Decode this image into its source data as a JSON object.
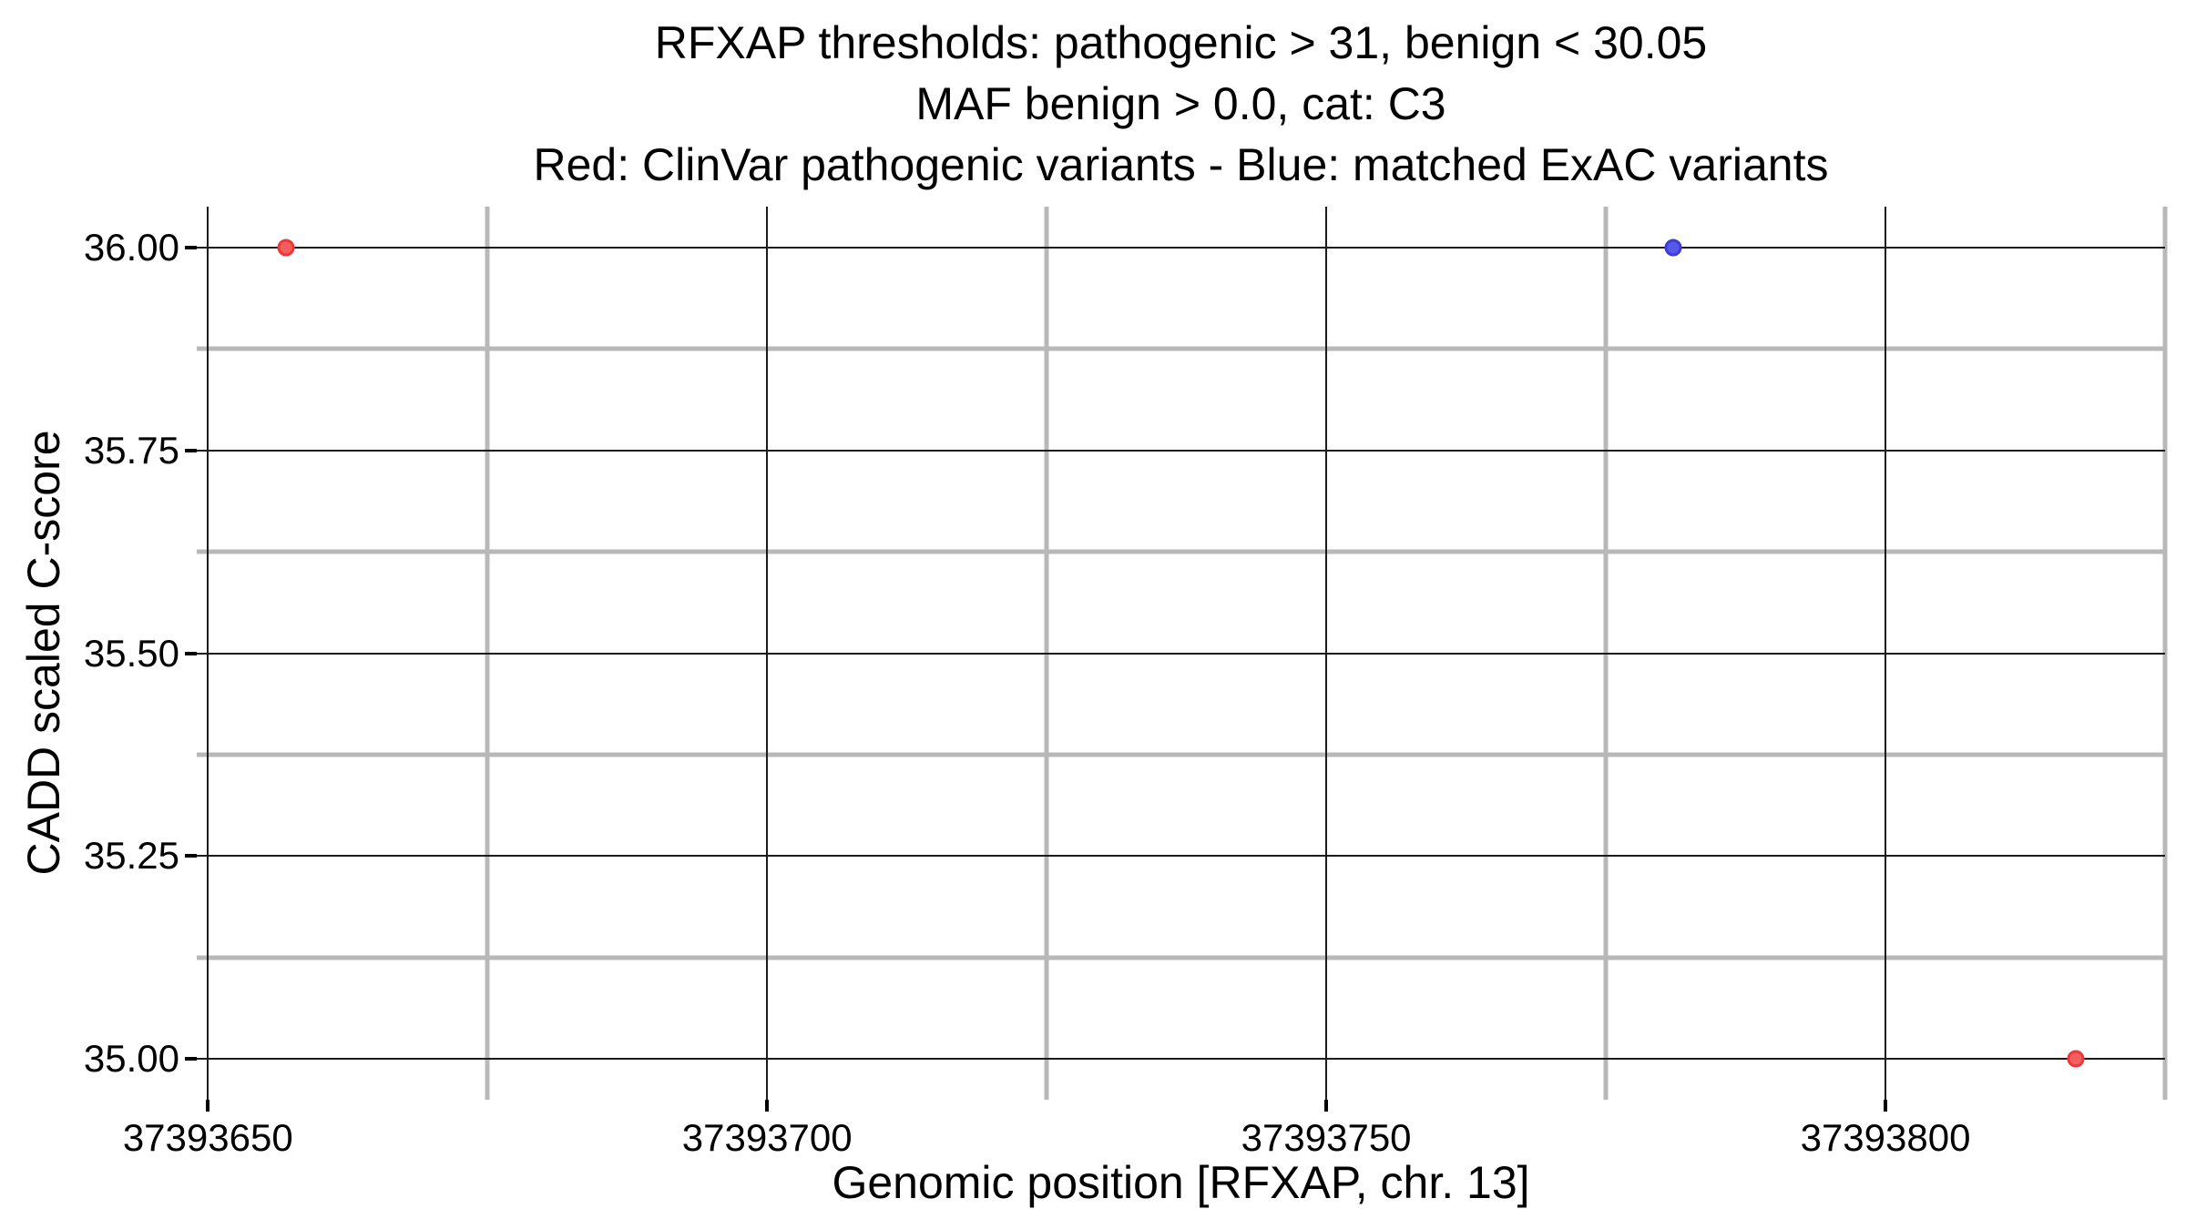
{
  "chart_data": {
    "type": "scatter",
    "title_lines": [
      "RFXAP thresholds: pathogenic > 31, benign < 30.05",
      "MAF benign > 0.0, cat: C3",
      "Red: ClinVar pathogenic variants - Blue: matched ExAC variants"
    ],
    "xlabel": "Genomic position [RFXAP, chr. 13]",
    "ylabel": "CADD scaled C-score",
    "xlim": [
      37393649,
      37393825
    ],
    "ylim": [
      34.95,
      36.05
    ],
    "xticks": [
      {
        "pos": 37393650,
        "label": "37393650"
      },
      {
        "pos": 37393700,
        "label": "37393700"
      },
      {
        "pos": 37393750,
        "label": "37393750"
      },
      {
        "pos": 37393800,
        "label": "37393800"
      }
    ],
    "xminor": [
      37393675,
      37393725,
      37393775,
      37393825
    ],
    "yticks": [
      {
        "value": 36.0,
        "label": "36.00"
      },
      {
        "value": 35.75,
        "label": "35.75"
      },
      {
        "value": 35.5,
        "label": "35.50"
      },
      {
        "value": 35.25,
        "label": "35.25"
      },
      {
        "value": 35.0,
        "label": "35.00"
      }
    ],
    "yminor": [
      35.875,
      35.625,
      35.375,
      35.125
    ],
    "grid": {
      "major_color": "#1c1c1c",
      "minor_color": "#b8b8b8",
      "background": "#ffffff"
    },
    "legend_position": "none",
    "series": [
      {
        "name": "ClinVar pathogenic variants",
        "fill_color": "#f25f5f",
        "border_color": "#ec3838",
        "points": [
          {
            "x": 37393657,
            "y": 36.0
          },
          {
            "x": 37393817,
            "y": 35.0
          }
        ]
      },
      {
        "name": "matched ExAC variants",
        "fill_color": "#5757e8",
        "border_color": "#3d3dd6",
        "points": [
          {
            "x": 37393781,
            "y": 36.0
          }
        ]
      }
    ]
  }
}
